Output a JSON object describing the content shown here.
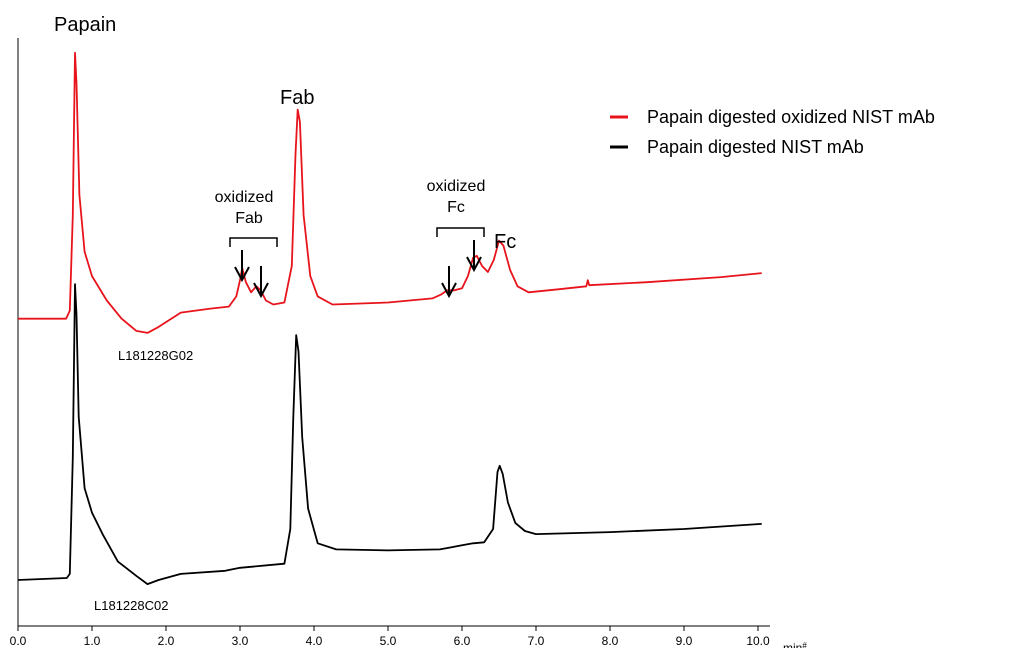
{
  "chart_data": {
    "type": "line",
    "x_axis": {
      "range": [
        0.0,
        10.0
      ],
      "tick_labels": [
        "0.0",
        "1.0",
        "2.0",
        "3.0",
        "4.0",
        "5.0",
        "6.0",
        "7.0",
        "8.0",
        "9.0",
        "10.0"
      ],
      "unit_label": "min",
      "unit_suffix": "#"
    },
    "series": [
      {
        "name": "Papain digested oxidized NIST mAb",
        "color": "#e8141c",
        "sample_label": "L181228G02",
        "points": [
          [
            0.0,
            0.9
          ],
          [
            0.65,
            0.9
          ],
          [
            0.7,
            1.3
          ],
          [
            0.74,
            6.0
          ],
          [
            0.77,
            14.0
          ],
          [
            0.79,
            12.5
          ],
          [
            0.83,
            7.0
          ],
          [
            0.9,
            4.2
          ],
          [
            1.0,
            3.0
          ],
          [
            1.2,
            1.8
          ],
          [
            1.4,
            0.9
          ],
          [
            1.6,
            0.3
          ],
          [
            1.75,
            0.2
          ],
          [
            1.9,
            0.5
          ],
          [
            2.2,
            1.2
          ],
          [
            2.6,
            1.4
          ],
          [
            2.85,
            1.5
          ],
          [
            2.95,
            2.0
          ],
          [
            3.0,
            2.8
          ],
          [
            3.03,
            3.4
          ],
          [
            3.08,
            2.7
          ],
          [
            3.15,
            2.2
          ],
          [
            3.22,
            2.5
          ],
          [
            3.28,
            2.3
          ],
          [
            3.35,
            1.8
          ],
          [
            3.45,
            1.6
          ],
          [
            3.6,
            1.7
          ],
          [
            3.7,
            3.5
          ],
          [
            3.75,
            9.0
          ],
          [
            3.78,
            11.2
          ],
          [
            3.81,
            10.6
          ],
          [
            3.86,
            6.0
          ],
          [
            3.95,
            3.0
          ],
          [
            4.05,
            2.0
          ],
          [
            4.25,
            1.6
          ],
          [
            5.0,
            1.7
          ],
          [
            5.6,
            1.9
          ],
          [
            5.72,
            2.1
          ],
          [
            5.8,
            2.3
          ],
          [
            5.9,
            2.3
          ],
          [
            6.0,
            2.4
          ],
          [
            6.08,
            3.0
          ],
          [
            6.15,
            3.9
          ],
          [
            6.2,
            4.0
          ],
          [
            6.27,
            3.5
          ],
          [
            6.35,
            3.2
          ],
          [
            6.43,
            3.8
          ],
          [
            6.5,
            4.75
          ],
          [
            6.56,
            4.5
          ],
          [
            6.65,
            3.3
          ],
          [
            6.75,
            2.5
          ],
          [
            6.9,
            2.2
          ],
          [
            7.3,
            2.35
          ],
          [
            7.68,
            2.5
          ],
          [
            7.7,
            2.8
          ],
          [
            7.72,
            2.55
          ],
          [
            8.5,
            2.7
          ],
          [
            9.5,
            2.95
          ],
          [
            10.05,
            3.15
          ]
        ]
      },
      {
        "name": "Papain digested NIST mAb",
        "color": "#000000",
        "sample_label": "L181228C02",
        "points": [
          [
            0.0,
            0.0
          ],
          [
            0.66,
            0.1
          ],
          [
            0.7,
            0.3
          ],
          [
            0.74,
            6.0
          ],
          [
            0.77,
            14.5
          ],
          [
            0.79,
            13.0
          ],
          [
            0.82,
            8.0
          ],
          [
            0.9,
            4.5
          ],
          [
            1.0,
            3.3
          ],
          [
            1.15,
            2.2
          ],
          [
            1.35,
            0.9
          ],
          [
            1.6,
            0.2
          ],
          [
            1.75,
            -0.2
          ],
          [
            1.9,
            0.0
          ],
          [
            2.2,
            0.3
          ],
          [
            2.8,
            0.45
          ],
          [
            3.0,
            0.6
          ],
          [
            3.6,
            0.8
          ],
          [
            3.68,
            2.5
          ],
          [
            3.72,
            8.0
          ],
          [
            3.76,
            12.0
          ],
          [
            3.79,
            11.2
          ],
          [
            3.84,
            7.0
          ],
          [
            3.92,
            3.5
          ],
          [
            4.05,
            1.8
          ],
          [
            4.3,
            1.5
          ],
          [
            5.0,
            1.45
          ],
          [
            5.7,
            1.5
          ],
          [
            5.85,
            1.6
          ],
          [
            6.0,
            1.7
          ],
          [
            6.15,
            1.8
          ],
          [
            6.3,
            1.85
          ],
          [
            6.42,
            2.5
          ],
          [
            6.48,
            5.3
          ],
          [
            6.51,
            5.6
          ],
          [
            6.55,
            5.2
          ],
          [
            6.62,
            3.8
          ],
          [
            6.72,
            2.8
          ],
          [
            6.85,
            2.4
          ],
          [
            7.0,
            2.25
          ],
          [
            8.0,
            2.35
          ],
          [
            9.0,
            2.5
          ],
          [
            10.05,
            2.75
          ]
        ]
      }
    ],
    "annotations": {
      "papain": "Papain",
      "fab": "Fab",
      "oxidized_fab_line1": "oxidized",
      "oxidized_fab_line2": "Fab",
      "oxidized_fc_line1": "oxidized",
      "oxidized_fc_line2": "Fc",
      "fc": "Fc"
    },
    "legend_position": "top-right",
    "grid": false
  }
}
